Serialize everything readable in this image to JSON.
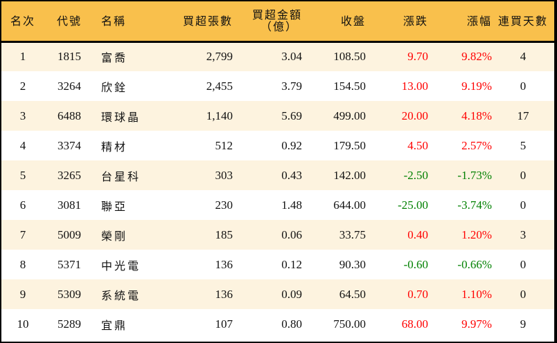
{
  "colors": {
    "header_bg": "#F9C04C",
    "row_stripe": "#FDF3DF",
    "up": "#FF0000",
    "down": "#008000"
  },
  "headers": {
    "rank": "名次",
    "code": "代號",
    "name": "名稱",
    "net_buy_lots": "買超張數",
    "net_buy_amount_line1": "買超金額",
    "net_buy_amount_line2": "（億）",
    "close": "收盤",
    "change": "漲跌",
    "change_pct": "漲幅",
    "consecutive_days": "連買天數"
  },
  "rows": [
    {
      "rank": "1",
      "code": "1815",
      "name": "富喬",
      "lots": "2,799",
      "amount": "3.04",
      "close": "108.50",
      "change": "9.70",
      "pct": "9.82%",
      "days": "4",
      "dir": "up"
    },
    {
      "rank": "2",
      "code": "3264",
      "name": "欣銓",
      "lots": "2,455",
      "amount": "3.79",
      "close": "154.50",
      "change": "13.00",
      "pct": "9.19%",
      "days": "0",
      "dir": "up"
    },
    {
      "rank": "3",
      "code": "6488",
      "name": "環球晶",
      "lots": "1,140",
      "amount": "5.69",
      "close": "499.00",
      "change": "20.00",
      "pct": "4.18%",
      "days": "17",
      "dir": "up"
    },
    {
      "rank": "4",
      "code": "3374",
      "name": "精材",
      "lots": "512",
      "amount": "0.92",
      "close": "179.50",
      "change": "4.50",
      "pct": "2.57%",
      "days": "5",
      "dir": "up"
    },
    {
      "rank": "5",
      "code": "3265",
      "name": "台星科",
      "lots": "303",
      "amount": "0.43",
      "close": "142.00",
      "change": "-2.50",
      "pct": "-1.73%",
      "days": "0",
      "dir": "down"
    },
    {
      "rank": "6",
      "code": "3081",
      "name": "聯亞",
      "lots": "230",
      "amount": "1.48",
      "close": "644.00",
      "change": "-25.00",
      "pct": "-3.74%",
      "days": "0",
      "dir": "down"
    },
    {
      "rank": "7",
      "code": "5009",
      "name": "榮剛",
      "lots": "185",
      "amount": "0.06",
      "close": "33.75",
      "change": "0.40",
      "pct": "1.20%",
      "days": "3",
      "dir": "up"
    },
    {
      "rank": "8",
      "code": "5371",
      "name": "中光電",
      "lots": "136",
      "amount": "0.12",
      "close": "90.30",
      "change": "-0.60",
      "pct": "-0.66%",
      "days": "0",
      "dir": "down"
    },
    {
      "rank": "9",
      "code": "5309",
      "name": "系統電",
      "lots": "136",
      "amount": "0.09",
      "close": "64.50",
      "change": "0.70",
      "pct": "1.10%",
      "days": "0",
      "dir": "up"
    },
    {
      "rank": "10",
      "code": "5289",
      "name": "宜鼎",
      "lots": "107",
      "amount": "0.80",
      "close": "750.00",
      "change": "68.00",
      "pct": "9.97%",
      "days": "9",
      "dir": "up"
    }
  ]
}
